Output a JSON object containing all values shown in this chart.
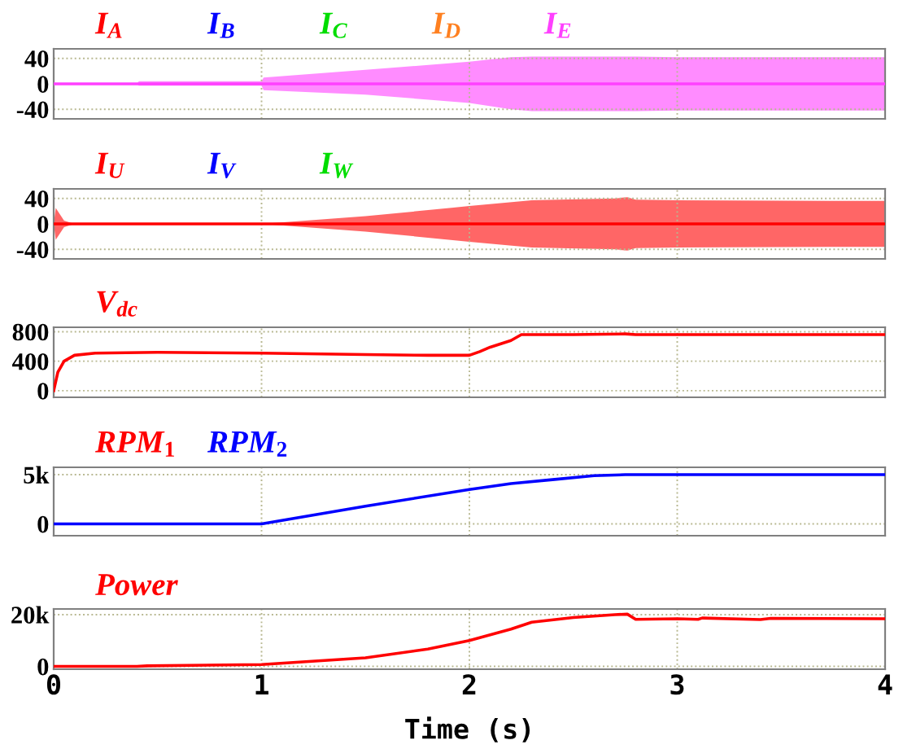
{
  "chart_data": [
    {
      "type": "line",
      "xlim": [
        0,
        4
      ],
      "xticks": [
        0,
        1,
        2,
        3,
        4
      ],
      "ylim": [
        -55,
        55
      ],
      "yticks": [
        -40,
        0,
        40
      ],
      "grid": true,
      "legend": "top",
      "tick_labels": "y",
      "series": [
        {
          "name": "I$_{A}$",
          "color": "#ff0000",
          "values": [
            null
          ]
        },
        {
          "name": "I$_{B}$",
          "color": "#0000ff",
          "values": [
            null
          ]
        },
        {
          "name": "I$_{C}$",
          "color": "#00dd00",
          "values": [
            null
          ]
        },
        {
          "name": "I$_{D}$",
          "color": "#ff8020",
          "values": [
            null
          ]
        },
        {
          "name": "I$_{E}$",
          "color": "#ff40ff",
          "x": [
            0,
            0.4,
            0.41,
            1.0,
            1.01,
            1.5,
            2.0,
            2.2,
            2.3,
            2.8,
            3.0,
            4.0
          ],
          "values": [
            0,
            0,
            0,
            0,
            0,
            0,
            0,
            0,
            0,
            0,
            0,
            0
          ],
          "lower": [
            0,
            0,
            -3,
            -3,
            -10,
            -17,
            -30,
            -40,
            -43,
            -43,
            -42,
            -42
          ],
          "upper": [
            0,
            0,
            4,
            4,
            10,
            22,
            35,
            42,
            43,
            43,
            42,
            42
          ]
        }
      ]
    },
    {
      "type": "line",
      "xlim": [
        0,
        4
      ],
      "xticks": [
        0,
        1,
        2,
        3,
        4
      ],
      "ylim": [
        -55,
        55
      ],
      "yticks": [
        -40,
        0,
        40
      ],
      "grid": true,
      "legend": "top left",
      "tick_labels": "y",
      "series": [
        {
          "name": "I$_{U}$",
          "color": "#ff0000",
          "x": [
            0,
            0.01,
            0.05,
            0.1,
            1.0,
            1.5,
            2.0,
            2.3,
            2.7,
            2.76,
            2.8,
            3.0,
            4.0
          ],
          "values": [
            0,
            0,
            0,
            0,
            0,
            0,
            0,
            0,
            0,
            0,
            0,
            0,
            0
          ],
          "lower": [
            0,
            -25,
            -5,
            0,
            0,
            -12,
            -28,
            -37,
            -40,
            -42,
            -38,
            -37,
            -36
          ],
          "upper": [
            0,
            25,
            5,
            0,
            0,
            12,
            28,
            37,
            40,
            42,
            38,
            37,
            36
          ]
        },
        {
          "name": "I$_{V}$",
          "color": "#0000ff",
          "values": [
            null
          ]
        },
        {
          "name": "I$_{W}$",
          "color": "#00dd00",
          "values": [
            null
          ]
        }
      ]
    },
    {
      "type": "line",
      "xlim": [
        0,
        4
      ],
      "xticks": [
        0,
        1,
        2,
        3,
        4
      ],
      "ylim": [
        -90,
        860
      ],
      "yticks": [
        0,
        400,
        800
      ],
      "grid": true,
      "legend": "top left",
      "tick_labels": "y",
      "series": [
        {
          "name": "V$_{dc}$",
          "color": "#ff0000",
          "x": [
            0,
            0.02,
            0.05,
            0.1,
            0.2,
            0.5,
            1.0,
            1.5,
            1.8,
            2.0,
            2.05,
            2.1,
            2.2,
            2.25,
            2.5,
            2.75,
            2.8,
            3.0,
            4.0
          ],
          "values": [
            0,
            250,
            400,
            480,
            510,
            520,
            510,
            490,
            480,
            480,
            530,
            590,
            680,
            760,
            760,
            770,
            760,
            760,
            760
          ]
        }
      ]
    },
    {
      "type": "line",
      "xlim": [
        0,
        4
      ],
      "xticks": [
        0,
        1,
        2,
        3,
        4
      ],
      "ylim": [
        -1200,
        5750
      ],
      "yticks": [
        0,
        {
          "value": 5000,
          "label": "5k"
        }
      ],
      "grid": true,
      "legend": "top left",
      "tick_labels": "y",
      "series": [
        {
          "name": "RPM$_{1}$",
          "color": "#ff0000",
          "values": [
            null
          ]
        },
        {
          "name": "RPM$_{2}$",
          "color": "#0000ff",
          "x": [
            0,
            1.0,
            1.5,
            2.0,
            2.2,
            2.4,
            2.6,
            2.75,
            4.0
          ],
          "values": [
            0,
            0,
            1800,
            3500,
            4100,
            4500,
            4900,
            5000,
            5000
          ]
        }
      ]
    },
    {
      "type": "line",
      "xlim": [
        0,
        4
      ],
      "xticks": [
        0,
        1,
        2,
        3,
        4
      ],
      "ylim": [
        -1100,
        22200
      ],
      "yticks": [
        0,
        {
          "value": 20000,
          "label": "20k"
        }
      ],
      "grid": true,
      "legend": "top left",
      "xlabel": "Time (s)",
      "series": [
        {
          "name": "Power",
          "color": "#ff0000",
          "x": [
            0,
            0.4,
            0.45,
            1.0,
            1.5,
            1.8,
            2.0,
            2.2,
            2.3,
            2.5,
            2.7,
            2.76,
            2.8,
            3.0,
            3.1,
            3.12,
            3.4,
            3.45,
            4.0
          ],
          "values": [
            0,
            0,
            200,
            700,
            3300,
            6700,
            10000,
            14400,
            17100,
            18900,
            20000,
            20200,
            18200,
            18400,
            18200,
            18700,
            18100,
            18600,
            18400
          ]
        }
      ]
    }
  ]
}
